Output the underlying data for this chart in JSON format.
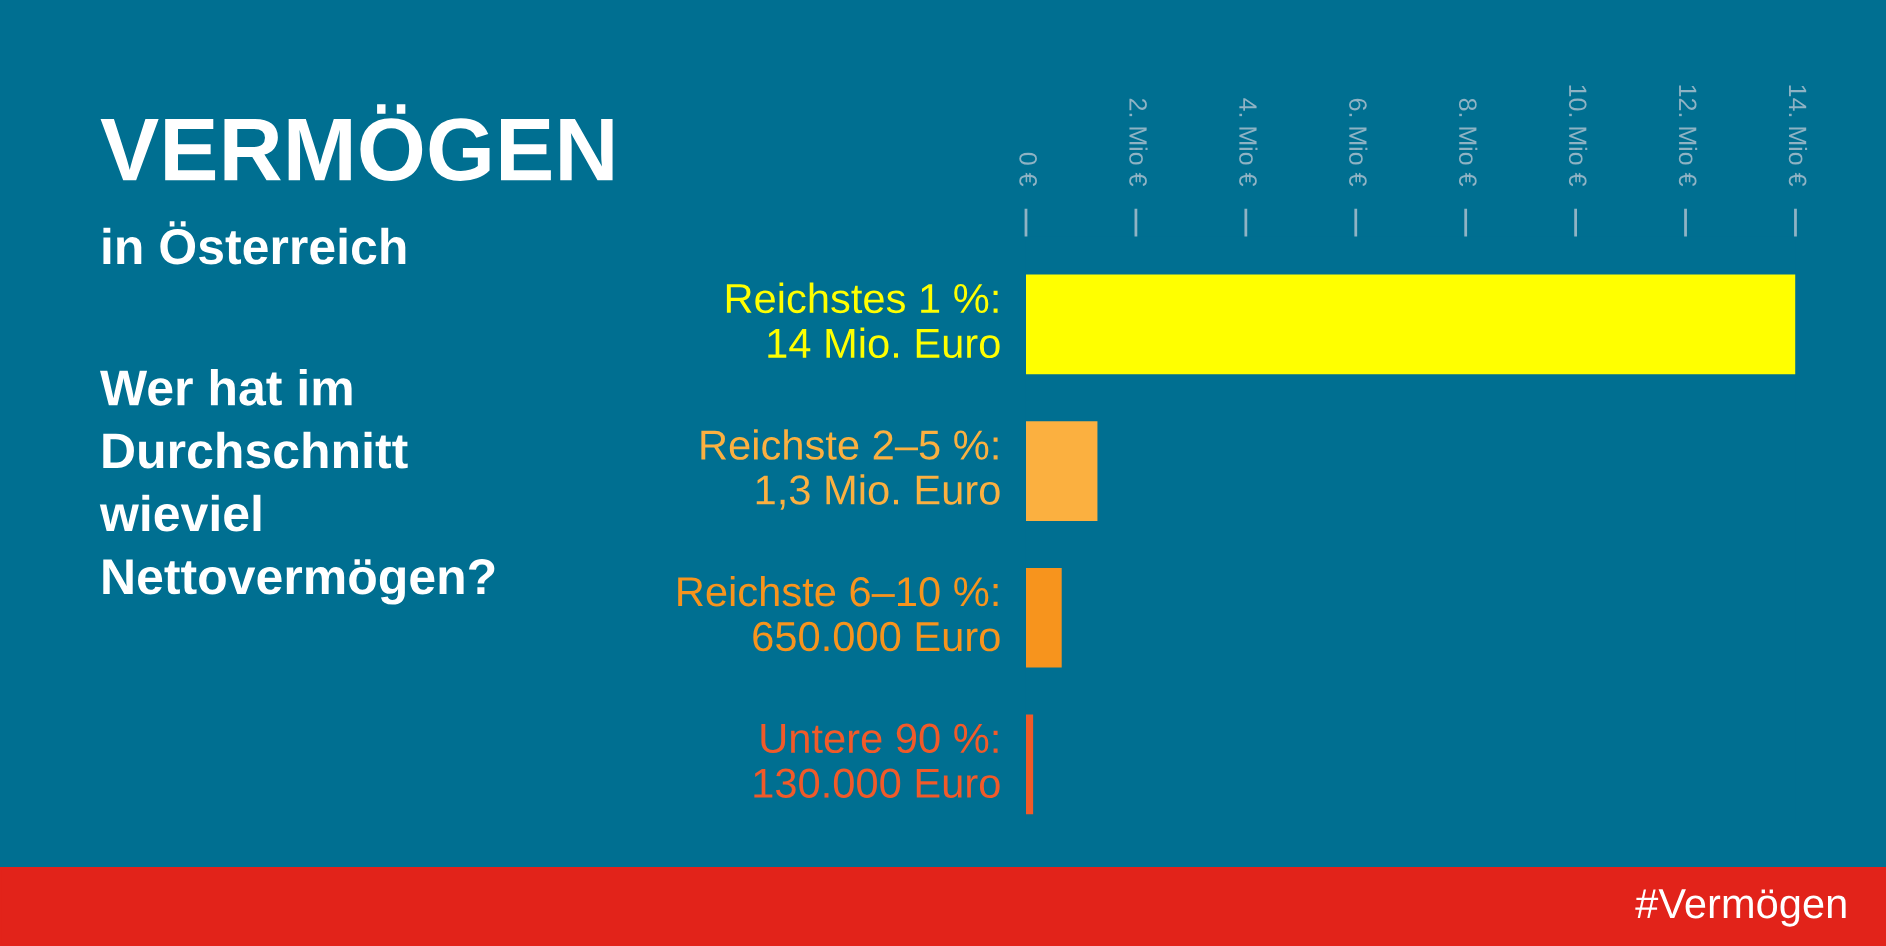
{
  "chart_data": {
    "type": "bar",
    "orientation": "horizontal",
    "title": "VERMÖGEN",
    "subtitle": "in Österreich",
    "annotations": [
      "Wer hat im\nDurchschnitt\nwieviel\nNettovermögen?",
      "#Vermögen"
    ],
    "categories": [
      "Reichstes 1 %:\n14 Mio. Euro",
      "Reichste 2–5 %:\n1,3 Mio. Euro",
      "Reichste 6–10 %:\n650.000 Euro",
      "Untere 90 %:\n130.000 Euro"
    ],
    "values": [
      14,
      1.3,
      0.65,
      0.13
    ],
    "colors": [
      "#ffff00",
      "#fbb040",
      "#f7941d",
      "#f15a29"
    ],
    "xlim": [
      0,
      14
    ],
    "xticks": [
      {
        "value": 0,
        "label": "0 €"
      },
      {
        "value": 2,
        "label": "2. Mio €"
      },
      {
        "value": 4,
        "label": "4. Mio €"
      },
      {
        "value": 6,
        "label": "6. Mio €"
      },
      {
        "value": 8,
        "label": "8. Mio €"
      },
      {
        "value": 10,
        "label": "10. Mio €"
      },
      {
        "value": 12,
        "label": "12. Mio €"
      },
      {
        "value": 14,
        "label": "14. Mio €"
      }
    ],
    "grid": false,
    "legend": false
  }
}
